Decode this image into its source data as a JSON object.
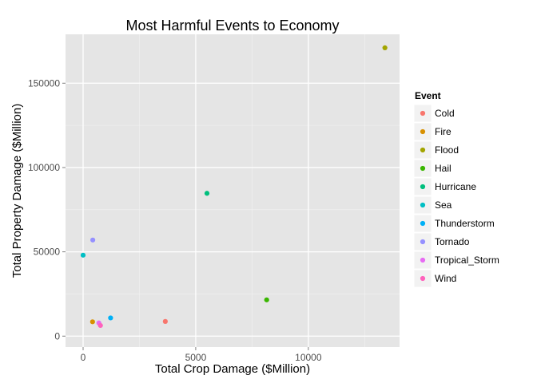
{
  "chart_data": {
    "type": "scatter",
    "title": "Most Harmful Events to Economy",
    "xlabel": "Total Crop Damage ($Million)",
    "ylabel": "Total Property Damage ($Million)",
    "xlim": [
      -780,
      14050
    ],
    "ylim": [
      -6500,
      179000
    ],
    "x_ticks": [
      0,
      5000,
      10000
    ],
    "x_tick_labels": [
      "0",
      "5000",
      "10000"
    ],
    "x_minor": [
      2500,
      7500,
      12500
    ],
    "y_ticks": [
      0,
      50000,
      100000,
      150000
    ],
    "y_tick_labels": [
      "0",
      "50000",
      "100000",
      "150000"
    ],
    "y_minor": [
      25000,
      75000,
      125000
    ],
    "grid": true,
    "legend_position": "right",
    "legend_title": "Event",
    "series": [
      {
        "name": "Cold",
        "color": "#F8766D",
        "x": 3650,
        "y": 8700
      },
      {
        "name": "Fire",
        "color": "#D89000",
        "x": 420,
        "y": 8500
      },
      {
        "name": "Flood",
        "color": "#A3A500",
        "x": 13400,
        "y": 171000
      },
      {
        "name": "Hail",
        "color": "#39B600",
        "x": 8150,
        "y": 21500
      },
      {
        "name": "Hurricane",
        "color": "#00BF7D",
        "x": 5500,
        "y": 84700
      },
      {
        "name": "Sea",
        "color": "#00BFC4",
        "x": 0,
        "y": 48000
      },
      {
        "name": "Thunderstorm",
        "color": "#00B0F6",
        "x": 1220,
        "y": 10800
      },
      {
        "name": "Tornado",
        "color": "#9590FF",
        "x": 430,
        "y": 57000
      },
      {
        "name": "Tropical_Storm",
        "color": "#E76BF3",
        "x": 700,
        "y": 7800
      },
      {
        "name": "Wind",
        "color": "#FF62BC",
        "x": 770,
        "y": 6300
      }
    ]
  }
}
